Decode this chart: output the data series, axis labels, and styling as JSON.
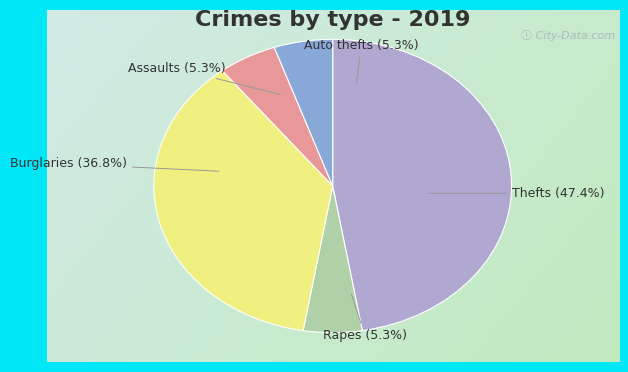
{
  "title": "Crimes by type - 2019",
  "slices": [
    {
      "label": "Thefts (47.4%)",
      "value": 47.4,
      "color": "#b0a8d0"
    },
    {
      "label": "Rapes (5.3%)",
      "value": 5.3,
      "color": "#b0d0a8"
    },
    {
      "label": "Burglaries (36.8%)",
      "value": 36.8,
      "color": "#f0f080"
    },
    {
      "label": "Assaults (5.3%)",
      "value": 5.3,
      "color": "#e89898"
    },
    {
      "label": "Auto thefts (5.3%)",
      "value": 5.3,
      "color": "#88a8d8"
    }
  ],
  "start_angle": 90,
  "bg_border_color": "#00e8f8",
  "bg_inner_top": "#c8e8e0",
  "bg_inner_bottom": "#d4ecd4",
  "title_fontsize": 16,
  "label_fontsize": 9,
  "watermark": "City-Data.com",
  "border_width": 8
}
